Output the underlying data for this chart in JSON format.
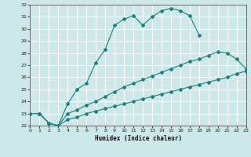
{
  "xlabel": "Humidex (Indice chaleur)",
  "bg_color": "#cce8e8",
  "grid_color": "#ffffff",
  "line_color": "#1a8080",
  "ylim": [
    22,
    32
  ],
  "xlim": [
    0,
    23
  ],
  "yticks": [
    22,
    23,
    24,
    25,
    26,
    27,
    28,
    29,
    30,
    31,
    32
  ],
  "xticks": [
    0,
    1,
    2,
    3,
    4,
    5,
    6,
    7,
    8,
    9,
    10,
    11,
    12,
    13,
    14,
    15,
    16,
    17,
    18,
    19,
    20,
    21,
    22,
    23
  ],
  "curve1_x": [
    0,
    1,
    2,
    3,
    4,
    5,
    6,
    7,
    8,
    9,
    10,
    11,
    12,
    13,
    14,
    15,
    16,
    17,
    18
  ],
  "curve1_y": [
    23.0,
    23.0,
    22.2,
    22.0,
    23.8,
    25.0,
    25.5,
    27.2,
    28.3,
    30.3,
    30.8,
    31.1,
    30.3,
    31.0,
    31.5,
    31.7,
    31.5,
    31.1,
    29.5
  ],
  "curve2_x": [
    0,
    1,
    2,
    3,
    4,
    5,
    6,
    7,
    8,
    9,
    10,
    11,
    12,
    13,
    14,
    15,
    16,
    17,
    18,
    19,
    20,
    21,
    22,
    23
  ],
  "curve2_y": [
    23.0,
    23.0,
    22.2,
    22.0,
    23.0,
    23.3,
    23.7,
    24.0,
    24.4,
    24.8,
    25.2,
    25.5,
    25.8,
    26.1,
    26.4,
    26.7,
    27.0,
    27.3,
    27.5,
    27.8,
    28.1,
    28.0,
    27.5,
    26.7
  ],
  "curve3_x": [
    0,
    1,
    2,
    3,
    4,
    5,
    6,
    7,
    8,
    9,
    10,
    11,
    12,
    13,
    14,
    15,
    16,
    17,
    18,
    19,
    20,
    21,
    22,
    23
  ],
  "curve3_y": [
    23.0,
    23.0,
    22.2,
    22.0,
    22.5,
    22.7,
    23.0,
    23.2,
    23.4,
    23.6,
    23.8,
    24.0,
    24.2,
    24.4,
    24.6,
    24.8,
    25.0,
    25.2,
    25.4,
    25.6,
    25.8,
    26.0,
    26.3,
    26.5
  ]
}
